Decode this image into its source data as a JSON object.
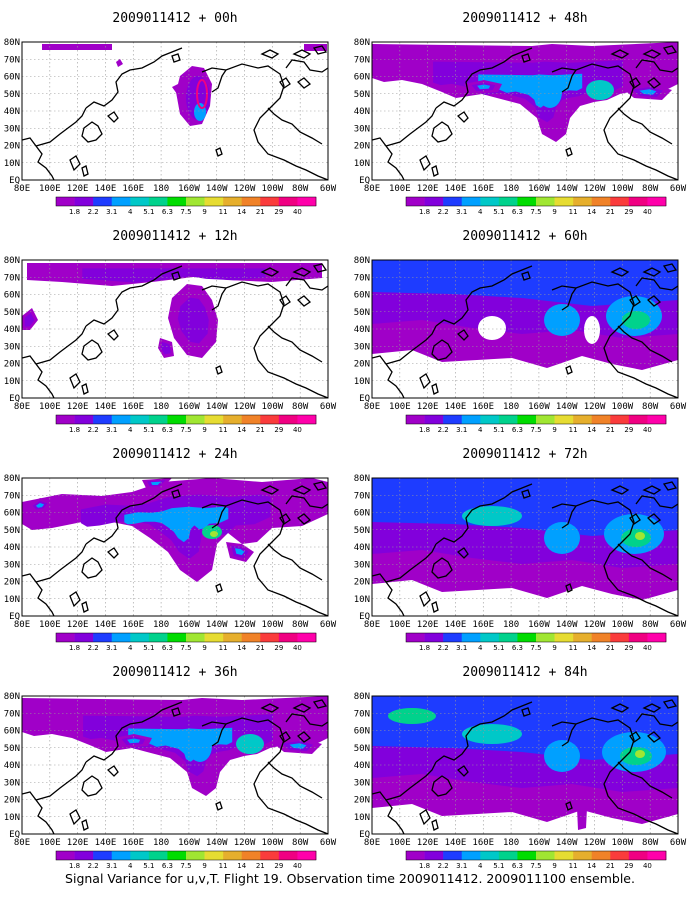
{
  "footer": "Signal Variance for u,v,T. Flight 19. Observation time 2009011412. 2009011100 ensemble.",
  "lat_labels": [
    "80N",
    "70N",
    "60N",
    "50N",
    "40N",
    "30N",
    "20N",
    "10N",
    "EQ"
  ],
  "lon_labels": [
    "80E",
    "100E",
    "120E",
    "140E",
    "160E",
    "180",
    "160W",
    "140W",
    "120W",
    "100W",
    "80W",
    "60W"
  ],
  "colorbar": {
    "labels": [
      "1.8",
      "2.2",
      "3.1",
      "4",
      "5.1",
      "6.3",
      "7.5",
      "9",
      "11",
      "14",
      "21",
      "29",
      "40"
    ],
    "colors": [
      "#a000c8",
      "#8200dc",
      "#1e3cff",
      "#00a0ff",
      "#00c8c8",
      "#00d28c",
      "#00dc00",
      "#a0e632",
      "#e6dc32",
      "#e6af2d",
      "#f08228",
      "#fa3c3c",
      "#f00082",
      "#ff00aa"
    ]
  },
  "panels": [
    {
      "id": "p00",
      "title": "2009011412 + 00h",
      "col": 0,
      "row": 0,
      "level": 0
    },
    {
      "id": "p12",
      "title": "2009011412 + 12h",
      "col": 0,
      "row": 1,
      "level": 1
    },
    {
      "id": "p24",
      "title": "2009011412 + 24h",
      "col": 0,
      "row": 2,
      "level": 2
    },
    {
      "id": "p36",
      "title": "2009011412 + 36h",
      "col": 0,
      "row": 3,
      "level": 3
    },
    {
      "id": "p48",
      "title": "2009011412 + 48h",
      "col": 1,
      "row": 0,
      "level": 3
    },
    {
      "id": "p60",
      "title": "2009011412 + 60h",
      "col": 1,
      "row": 1,
      "level": 4
    },
    {
      "id": "p72",
      "title": "2009011412 + 72h",
      "col": 1,
      "row": 2,
      "level": 5
    },
    {
      "id": "p84",
      "title": "2009011412 + 84h",
      "col": 1,
      "row": 3,
      "level": 6
    }
  ]
}
